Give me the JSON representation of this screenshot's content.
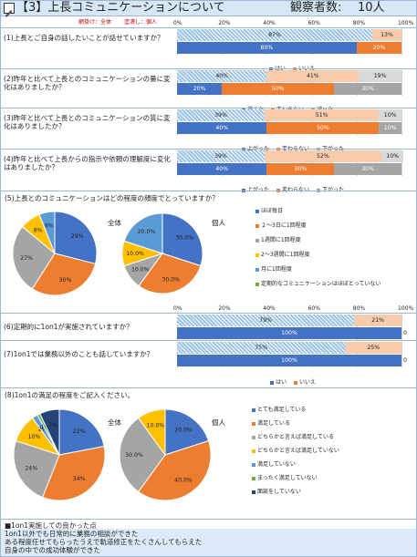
{
  "header": {
    "title": "【3】上長コミュニケーションについて",
    "observers_label": "観察者数:",
    "observers_count": "10人"
  },
  "legend_top": {
    "left": "網掛け：全体",
    "right": "塗潰し：個人"
  },
  "axis_ticks": [
    "0%",
    "20%",
    "40%",
    "60%",
    "80%",
    "100%"
  ],
  "colors": {
    "blue": "#4472c4",
    "orange": "#ed7d31",
    "gray": "#a5a5a5",
    "hatch": "#9dc3e6",
    "peach": "#f8cbad",
    "lightgray": "#d9d9d9"
  },
  "questions": [
    {
      "label": "(1)上長とご自身の話したいことが話せていますか？",
      "overall": [
        87,
        13
      ],
      "individual": [
        80,
        20
      ],
      "overall_labels": [
        "87%",
        "13%"
      ],
      "individual_labels": [
        "80%",
        "20%"
      ],
      "legend": [
        "はい",
        "いいえ"
      ]
    },
    {
      "label": "(2)昨年と比べて上長とのコミュニケーションの量に変化はありましたか？",
      "overall": [
        40,
        41,
        19
      ],
      "individual": [
        20,
        50,
        30
      ],
      "overall_labels": [
        "40%",
        "41%",
        "19%"
      ],
      "individual_labels": [
        "20%",
        "50%",
        "30%"
      ],
      "legend": [
        "増えた",
        "変わらない",
        "減った"
      ]
    },
    {
      "label": "(3)昨年と比べて上長とのコミュニケーションの質に変化はありましたか？",
      "overall": [
        39,
        51,
        10
      ],
      "individual": [
        40,
        50,
        10
      ],
      "overall_labels": [
        "39%",
        "51%",
        "10%"
      ],
      "individual_labels": [
        "40%",
        "50%",
        "10%"
      ],
      "legend": [
        "上がった",
        "変わらない",
        "下がった"
      ]
    },
    {
      "label": "(4)昨年と比べて上長からの指示や依頼の理解度に変化はありましたか？",
      "overall": [
        39,
        52,
        10
      ],
      "individual": [
        40,
        30,
        30
      ],
      "overall_labels": [
        "39%",
        "52%",
        "10%"
      ],
      "individual_labels": [
        "40%",
        "30%",
        "30%"
      ],
      "legend": [
        "上がった",
        "変わらない",
        "下がった"
      ]
    }
  ],
  "q5": {
    "label": "(5)上長とのコミュニケーションはどの程度の頻度でとっていますか？",
    "overall_title": "全体",
    "individual_title": "個人",
    "overall": [
      29,
      30,
      27,
      8,
      6
    ],
    "overall_labels": [
      "29%",
      "30%",
      "27%",
      "8%",
      "6%"
    ],
    "individual": [
      30,
      30,
      10,
      10,
      20
    ],
    "individual_labels": [
      "30.0%",
      "30.0%",
      "10.0%",
      "10.0%",
      "20.0%"
    ],
    "legend": [
      "ほぼ毎日",
      "２～3日に1回程度",
      "1週間に1回程度",
      "2～3週間に1回程度",
      "月に1回程度",
      "定期的なコミュニケーションはほぼとっていない"
    ],
    "colors": [
      "#4472c4",
      "#ed7d31",
      "#a5a5a5",
      "#ffc000",
      "#5b9bd5",
      "#70ad47"
    ]
  },
  "q67": [
    {
      "label": "(6)定期的に1on1が実施されていますか？",
      "overall": [
        79,
        21
      ],
      "individual": [
        100,
        0
      ],
      "overall_labels": [
        "79%",
        "21%"
      ],
      "individual_labels": [
        "100%",
        "0"
      ]
    },
    {
      "label": "(7)1on1では業務以外のことも話していますか？",
      "overall": [
        75,
        25
      ],
      "individual": [
        100,
        0
      ],
      "overall_labels": [
        "75%",
        "25%"
      ],
      "individual_labels": [
        "100%",
        "0"
      ]
    }
  ],
  "q67_legend": [
    "はい",
    "いいえ"
  ],
  "q8": {
    "label": "(8)1on1の満足の程度をご記入ください。",
    "overall_title": "全体",
    "individual_title": "個人",
    "overall": [
      22,
      34,
      24,
      10,
      2,
      1,
      7
    ],
    "overall_labels": [
      "22%",
      "34%",
      "24%",
      "10%",
      "2%",
      "1%",
      "7%"
    ],
    "individual": [
      20,
      40,
      30,
      10
    ],
    "individual_labels": [
      "20.0%",
      "40.0%",
      "30.0%",
      "10.0%"
    ],
    "legend": [
      "とても満足している",
      "満足している",
      "どちらかと言えば満足している",
      "どちらかと言えば満足していない",
      "満足していない",
      "まったく満足していない",
      "面談をしていない"
    ],
    "colors": [
      "#4472c4",
      "#ed7d31",
      "#a5a5a5",
      "#ffc000",
      "#5b9bd5",
      "#70ad47",
      "#264478"
    ]
  },
  "comments": {
    "title": "■1on1実施しての良かった点",
    "lines": [
      "1on1以外でも日常的に業務の相談ができた",
      "ある程度任せてもらったうえで軌道修正をたくさんしてもらえた",
      "自身の中での成功体験ができた"
    ]
  }
}
